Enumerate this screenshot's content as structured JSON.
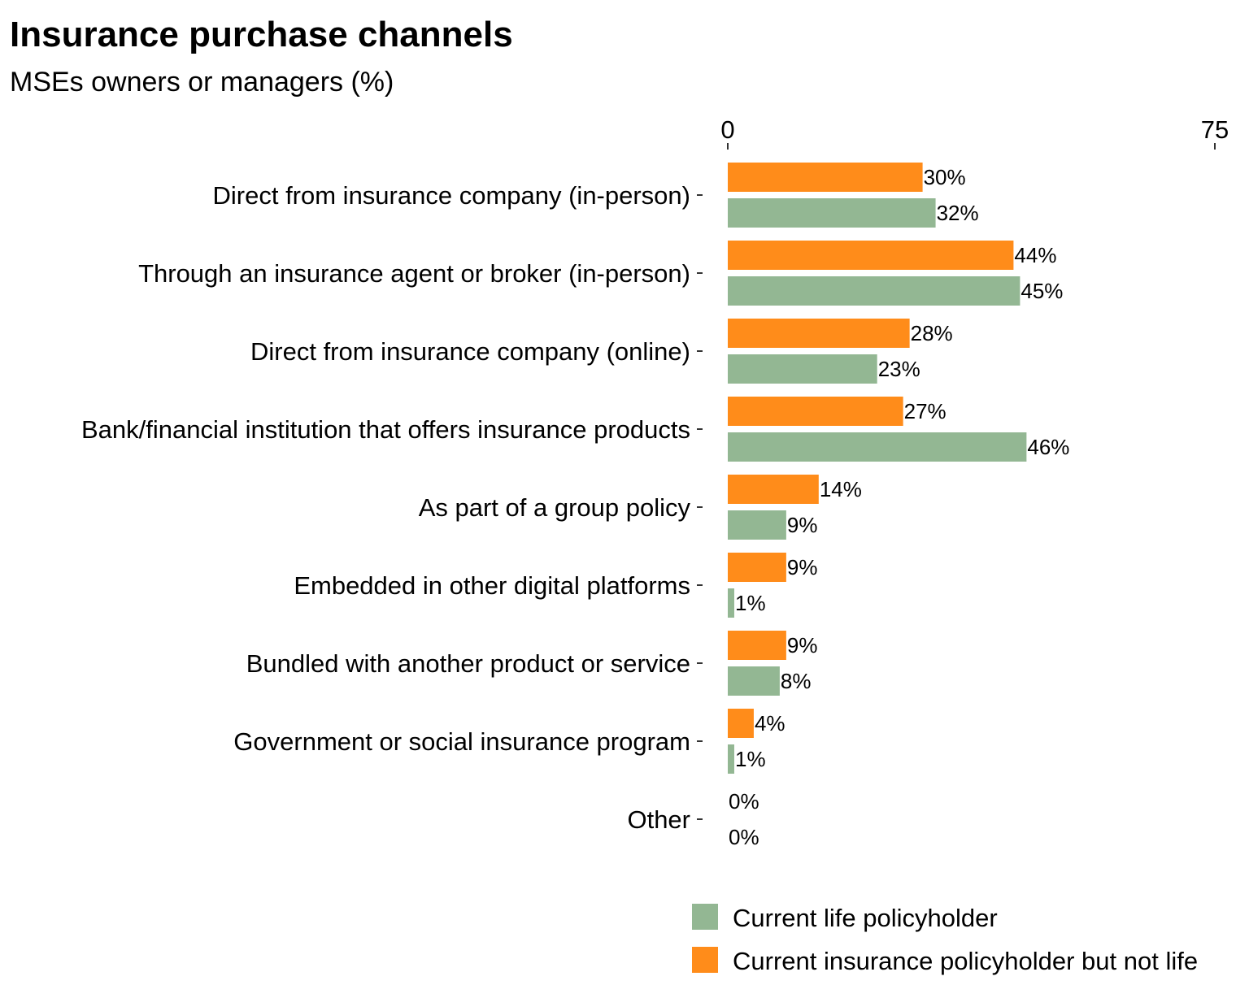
{
  "chart_data": {
    "type": "bar",
    "orientation": "horizontal",
    "title": "Insurance purchase channels",
    "subtitle": "MSEs owners or managers (%)",
    "xlabel": "",
    "ylabel": "",
    "xlim": [
      0,
      75
    ],
    "x_ticks": [
      0,
      75
    ],
    "grid": false,
    "legend_position": "bottom",
    "categories": [
      "Direct from insurance company (in-person)",
      "Through an insurance agent or broker (in-person)",
      "Direct from insurance company (online)",
      "Bank/financial institution that offers insurance products",
      "As part of a group policy",
      "Embedded in other digital platforms",
      "Bundled with another product or service",
      "Government or social insurance program",
      "Other"
    ],
    "series": [
      {
        "name": "Current insurance policyholder but not life",
        "color": "#FF8C1A",
        "values": [
          30,
          44,
          28,
          27,
          14,
          9,
          9,
          4,
          0
        ],
        "labels": [
          "30%",
          "44%",
          "28%",
          "27%",
          "14%",
          "9%",
          "9%",
          "4%",
          "0%"
        ]
      },
      {
        "name": "Current life policyholder",
        "color": "#93B793",
        "values": [
          32,
          45,
          23,
          46,
          9,
          1,
          8,
          1,
          0
        ],
        "labels": [
          "32%",
          "45%",
          "23%",
          "46%",
          "9%",
          "1%",
          "8%",
          "1%",
          "0%"
        ]
      }
    ],
    "legend_order": [
      "Current life policyholder",
      "Current insurance policyholder but not life"
    ]
  }
}
